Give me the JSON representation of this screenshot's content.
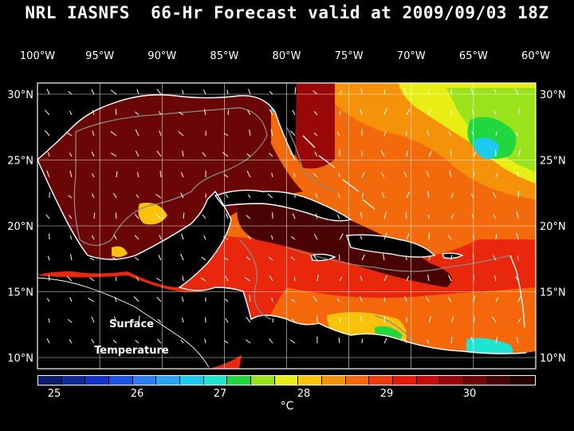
{
  "title": "NRL IASNFS  66-Hr Forecast valid at 2009/09/03 18Z",
  "lon_labels": [
    "100°W",
    "95°W",
    "90°W",
    "85°W",
    "80°W",
    "75°W",
    "70°W",
    "65°W",
    "60°W"
  ],
  "lat_labels": [
    "30°N",
    "25°N",
    "20°N",
    "15°N",
    "10°N"
  ],
  "map_label": {
    "line1": "Surface",
    "line2": "Temperature"
  },
  "colorbar": {
    "colors": [
      "#0b1c6e",
      "#102a9a",
      "#1433c9",
      "#1c53e8",
      "#2a7df2",
      "#2aa4f5",
      "#1ccbee",
      "#1de5d0",
      "#22d73d",
      "#9ae21c",
      "#e8ee13",
      "#f9c20b",
      "#f6920a",
      "#f4680b",
      "#ef3a0b",
      "#e31b0b",
      "#c40c0b",
      "#980808",
      "#6e0605",
      "#4a0303",
      "#2a0101"
    ],
    "ticks": [
      "25",
      "26",
      "27",
      "28",
      "29",
      "30"
    ],
    "unit": "°C"
  },
  "palette": {
    "gulf": "#6a0606",
    "caribbean": "#e8270c",
    "atlantic": "#f26a0b",
    "cool": "#3ac9c6",
    "land": "#000000",
    "coast": "#ffffff",
    "depth_contour": "#8a8a8a"
  }
}
